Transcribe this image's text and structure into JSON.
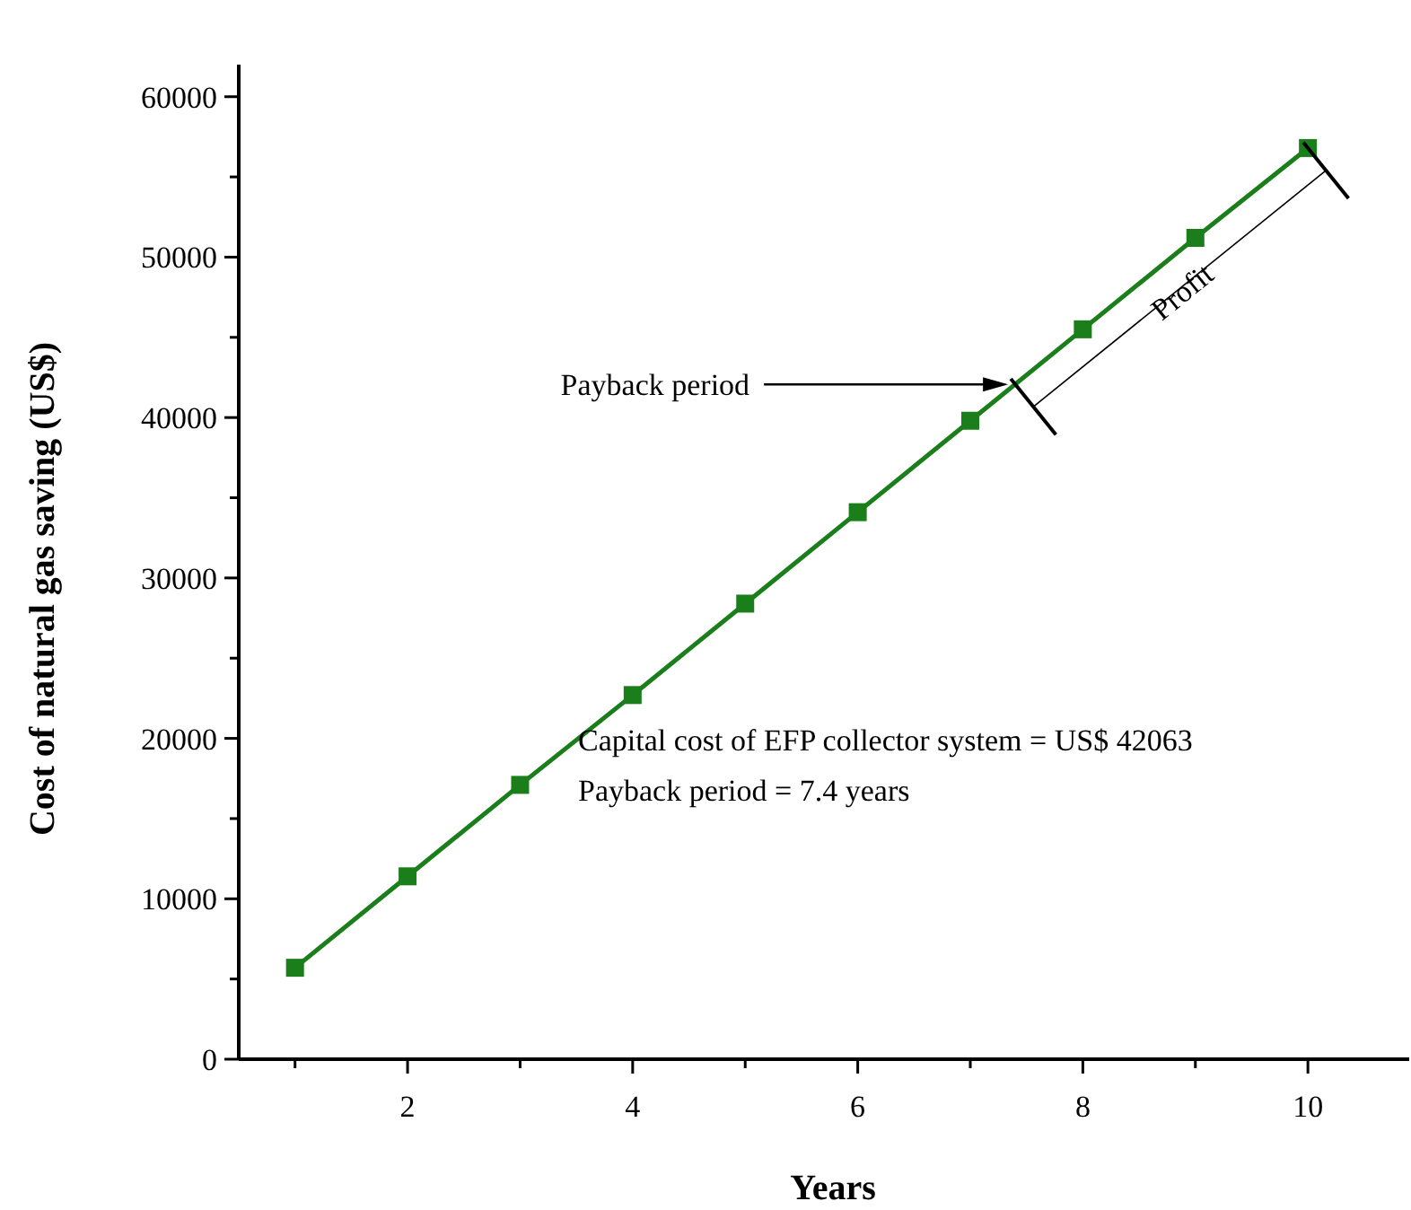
{
  "chart_data": {
    "type": "line",
    "xlabel": "Years",
    "ylabel": "Cost of natural gas saving (US$)",
    "x": [
      1,
      2,
      3,
      4,
      5,
      6,
      7,
      8,
      9,
      10
    ],
    "series": [
      {
        "color": "#1a7f1a",
        "values": [
          5700,
          11400,
          17100,
          22700,
          28400,
          34100,
          39800,
          45500,
          51200,
          56800
        ]
      }
    ],
    "marker": "square",
    "line_style": "solid",
    "grid": false,
    "xlim": [
      0.5,
      10.9
    ],
    "xticks": [
      {
        "value": 1,
        "label": null
      },
      2,
      {
        "value": 3,
        "label": null
      },
      4,
      {
        "value": 5,
        "label": null
      },
      6,
      {
        "value": 7,
        "label": null
      },
      8,
      {
        "value": 9,
        "label": null
      },
      10
    ],
    "ylim": [
      0,
      62000
    ],
    "yticks": [
      0,
      {
        "value": 5000,
        "label": null
      },
      10000,
      {
        "value": 15000,
        "label": null
      },
      20000,
      {
        "value": 25000,
        "label": null
      },
      30000,
      {
        "value": 35000,
        "label": null
      },
      40000,
      {
        "value": 45000,
        "label": null
      },
      50000,
      {
        "value": 55000,
        "label": null
      },
      60000
    ],
    "annotations": [
      "Payback period",
      {
        "text": "Profit",
        "x": 8.7,
        "y": 49431.5
      },
      "Capital cost of EFP collector system = US$ 42063",
      "Payback period = 7.4 years"
    ]
  }
}
